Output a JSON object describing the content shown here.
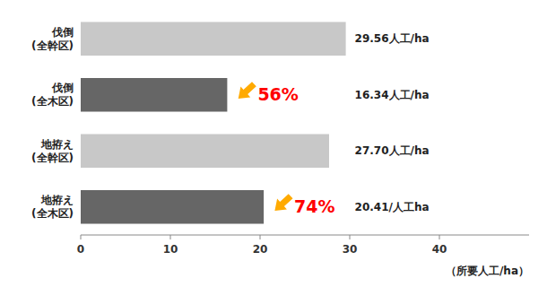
{
  "chart_data": {
    "type": "bar",
    "orientation": "horizontal",
    "categories": [
      "伐倒\n(全幹区)",
      "伐倒\n(全木区)",
      "地拵え\n(全幹区)",
      "地拵え\n(全木区)"
    ],
    "values": [
      29.56,
      16.34,
      27.7,
      20.41
    ],
    "value_labels": [
      "29.56人工/ha",
      "16.34人工/ha",
      "27.70人工/ha",
      "20.41/人工ha"
    ],
    "data_labels": true,
    "colors": [
      "#c8c8c8",
      "#666666",
      "#c8c8c8",
      "#666666"
    ],
    "xlabel": "（所要人工/ha）",
    "xlim": [
      0,
      50
    ],
    "xticks": [
      0,
      10,
      20,
      30,
      40
    ],
    "grid": false,
    "annotations": [
      {
        "text": "56%",
        "category": "伐倒\n(全木区)",
        "color": "#ff0000"
      },
      {
        "text": "74%",
        "category": "地拵え\n(全木区)",
        "color": "#ff0000"
      }
    ]
  }
}
